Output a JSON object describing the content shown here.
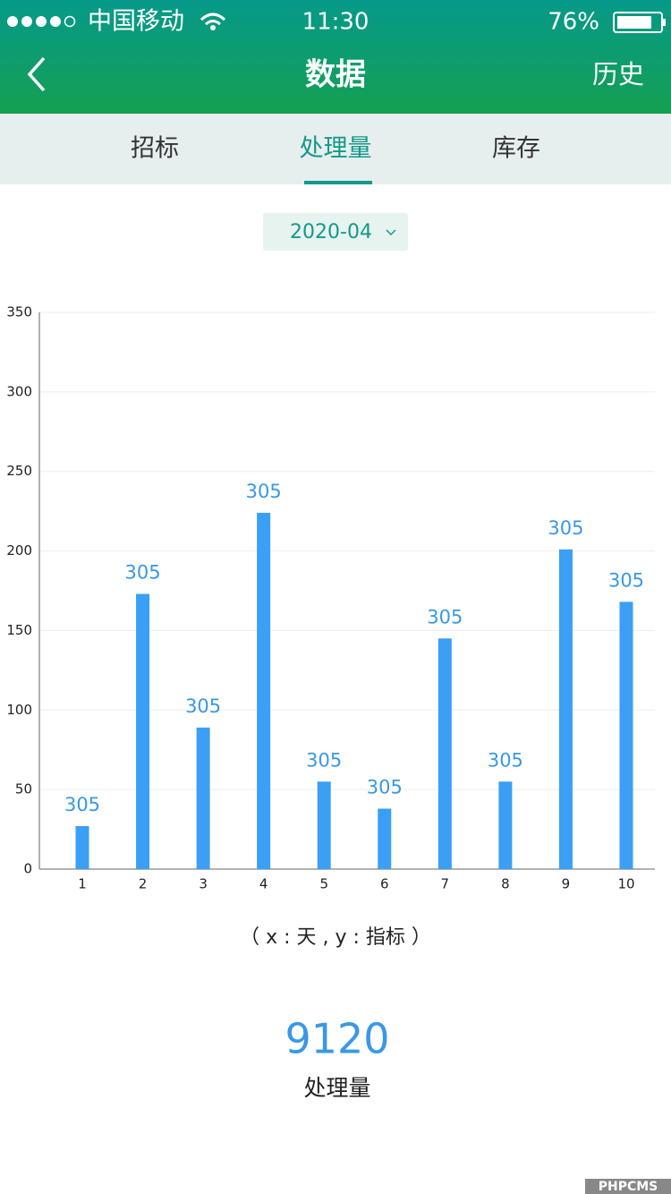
{
  "status_bar": {
    "carrier": "中国移动",
    "time": "11:30",
    "battery": "76%"
  },
  "nav": {
    "title": "数据",
    "right_action": "历史"
  },
  "tabs": [
    "招标",
    "处理量",
    "库存"
  ],
  "date_picker": "2020-04",
  "chart_data": {
    "type": "bar",
    "categories": [
      "1",
      "2",
      "3",
      "4",
      "5",
      "6",
      "7",
      "8",
      "9",
      "10"
    ],
    "values": [
      27,
      173,
      89,
      224,
      55,
      38,
      145,
      55,
      201,
      168
    ],
    "annotations": [
      "305",
      "305",
      "305",
      "305",
      "305",
      "305",
      "305",
      "305",
      "305",
      "305"
    ],
    "color": "#3a9ff5",
    "ylim": [
      0,
      350
    ],
    "yticks": [
      0,
      50,
      100,
      150,
      200,
      250,
      300,
      350
    ],
    "grid": true
  },
  "axis_note": "（ x : 天 , y : 指标 ）",
  "summary": {
    "value": 9120,
    "label": "处理量"
  },
  "watermark": "PHPCMS"
}
